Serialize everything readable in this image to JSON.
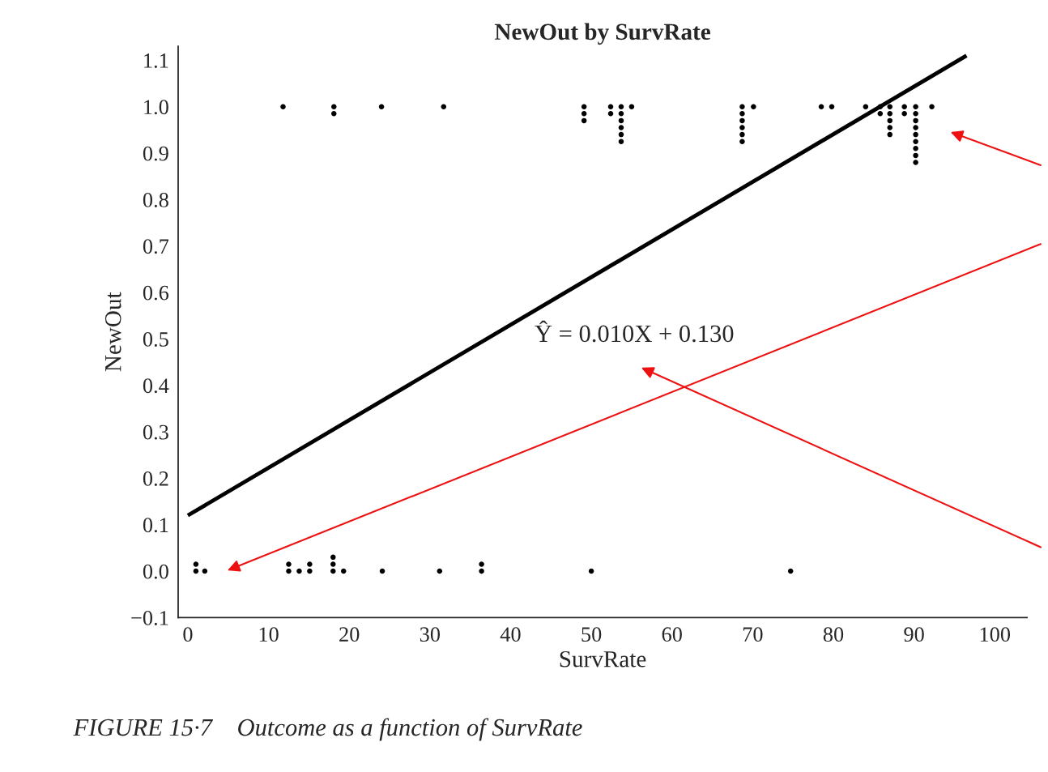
{
  "chart_data": {
    "type": "scatter",
    "title": "NewOut by SurvRate",
    "xlabel": "SurvRate",
    "ylabel": "NewOut",
    "xlim": [
      -1.2,
      104
    ],
    "ylim": [
      -0.1,
      1.13
    ],
    "xticks": [
      0,
      10,
      20,
      30,
      40,
      50,
      60,
      70,
      80,
      90,
      100
    ],
    "yticks": [
      {
        "value": -0.1,
        "label": "−0.1"
      },
      {
        "value": 0,
        "label": "0.0"
      },
      {
        "value": 0.1,
        "label": "0.1"
      },
      {
        "value": 0.2,
        "label": "0.2"
      },
      {
        "value": 0.3,
        "label": "0.3"
      },
      {
        "value": 0.4,
        "label": "0.4"
      },
      {
        "value": 0.5,
        "label": "0.5"
      },
      {
        "value": 0.6,
        "label": "0.6"
      },
      {
        "value": 0.7,
        "label": "0.7"
      },
      {
        "value": 0.8,
        "label": "0.8"
      },
      {
        "value": 0.9,
        "label": "0.9"
      },
      {
        "value": 1,
        "label": "1.0"
      },
      {
        "value": 1.1,
        "label": "1.1"
      }
    ],
    "grid": false,
    "legend": false,
    "series": [
      {
        "marker": "circle",
        "color": "#000000",
        "x": [
          11.8,
          18.1,
          18.1,
          24.0,
          31.7,
          49.1,
          49.1,
          49.1,
          52.4,
          52.4,
          53.7,
          53.7,
          53.7,
          53.7,
          53.7,
          53.7,
          55.0,
          68.7,
          68.7,
          68.7,
          68.7,
          68.7,
          68.7,
          70.1,
          78.5,
          79.8,
          84.0,
          85.8,
          85.8,
          87.0,
          87.0,
          87.0,
          87.0,
          87.0,
          88.8,
          88.8,
          90.2,
          90.2,
          90.2,
          90.2,
          90.2,
          90.2,
          90.2,
          90.2,
          90.2,
          92.2,
          1.0,
          1.0,
          2.1,
          12.5,
          12.5,
          13.8,
          15.1,
          15.1,
          18.0,
          18.0,
          18.0,
          19.3,
          24.1,
          31.2,
          36.4,
          36.4,
          50.0,
          74.7
        ],
        "values": [
          1.0,
          1.0,
          0.985,
          1.0,
          1.0,
          1.0,
          0.985,
          0.97,
          1.0,
          0.985,
          1.0,
          0.985,
          0.97,
          0.955,
          0.94,
          0.925,
          1.0,
          1.0,
          0.985,
          0.97,
          0.955,
          0.94,
          0.925,
          1.0,
          1.0,
          1.0,
          1.0,
          1.0,
          0.985,
          1.0,
          0.985,
          0.97,
          0.955,
          0.94,
          1.0,
          0.985,
          1.0,
          0.985,
          0.97,
          0.955,
          0.94,
          0.925,
          0.91,
          0.895,
          0.88,
          1.0,
          0.015,
          0.0,
          0.0,
          0.015,
          0.0,
          0.0,
          0.015,
          0.0,
          0.03,
          0.015,
          0.0,
          0.0,
          0.0,
          0.0,
          0.015,
          0.0,
          0.0,
          0.0
        ]
      },
      {
        "type": "line",
        "color": "#000000",
        "x": [
          0,
          96.5
        ],
        "values": [
          0.12,
          1.11
        ]
      }
    ],
    "annotations": [
      "Ŷ = 0.010X + 0.130",
      "FIGURE 15·7    Outcome as a function of SurvRate"
    ]
  }
}
